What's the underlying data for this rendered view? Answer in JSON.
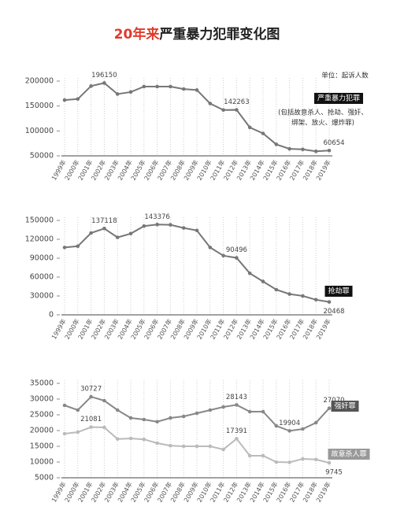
{
  "title": {
    "highlight": "20年来",
    "rest": "严重暴力犯罪变化图"
  },
  "chart_data": [
    {
      "type": "line",
      "unit": "单位：起诉人数",
      "annotations": [
        "(包括故意杀人、抢劫、强奸、",
        "绑架、放火、爆炸罪)"
      ],
      "categories": [
        "1999年",
        "2000年",
        "2001年",
        "2002年",
        "2003年",
        "2004年",
        "2005年",
        "2006年",
        "2007年",
        "2008年",
        "2009年",
        "2010年",
        "2011年",
        "2012年",
        "2013年",
        "2014年",
        "2015年",
        "2016年",
        "2017年",
        "2018年",
        "2019年"
      ],
      "series": [
        {
          "name": "严重暴力犯罪",
          "color": "#777777",
          "label_bg": "#111111",
          "values": [
            162000,
            164000,
            190000,
            196150,
            174000,
            178000,
            189000,
            189000,
            189000,
            184000,
            182000,
            155000,
            142000,
            142263,
            107000,
            95000,
            73000,
            64000,
            63000,
            59000,
            60654
          ],
          "value_labels": [
            null,
            null,
            null,
            "196150",
            null,
            null,
            null,
            null,
            null,
            null,
            null,
            null,
            null,
            "142263",
            null,
            null,
            null,
            null,
            null,
            null,
            "60654"
          ]
        }
      ],
      "ylim": [
        50000,
        200000
      ],
      "yticks": [
        50000,
        100000,
        150000,
        200000
      ],
      "grid": true
    },
    {
      "type": "line",
      "categories": [
        "1999年",
        "2000年",
        "2001年",
        "2002年",
        "2003年",
        "2004年",
        "2005年",
        "2006年",
        "2007年",
        "2008年",
        "2009年",
        "2010年",
        "2011年",
        "2012年",
        "2013年",
        "2014年",
        "2015年",
        "2016年",
        "2017年",
        "2018年",
        "2019年"
      ],
      "series": [
        {
          "name": "抢劫罪",
          "color": "#777777",
          "label_bg": "#111111",
          "values": [
            107000,
            109000,
            130000,
            137118,
            123000,
            129000,
            141000,
            143376,
            143000,
            138000,
            134000,
            107000,
            94000,
            90496,
            66000,
            53000,
            40000,
            33000,
            30000,
            24000,
            20468
          ],
          "value_labels": [
            null,
            null,
            null,
            "137118",
            null,
            null,
            null,
            "143376",
            null,
            null,
            null,
            null,
            null,
            "90496",
            null,
            null,
            null,
            null,
            null,
            null,
            "20468"
          ]
        }
      ],
      "ylim": [
        0,
        150000
      ],
      "yticks": [
        0,
        30000,
        60000,
        90000,
        120000,
        150000
      ],
      "grid": true
    },
    {
      "type": "line",
      "categories": [
        "1999年",
        "2000年",
        "2001年",
        "2002年",
        "2003年",
        "2004年",
        "2005年",
        "2006年",
        "2007年",
        "2008年",
        "2009年",
        "2010年",
        "2011年",
        "2012年",
        "2013年",
        "2014年",
        "2015年",
        "2016年",
        "2017年",
        "2018年",
        "2019年"
      ],
      "series": [
        {
          "name": "强奸罪",
          "color": "#888888",
          "label_bg": "#555555",
          "values": [
            28000,
            26500,
            30727,
            29500,
            26500,
            24000,
            23500,
            22800,
            24000,
            24500,
            25500,
            26500,
            27500,
            28143,
            26000,
            26000,
            21500,
            19904,
            20500,
            22500,
            27070
          ],
          "value_labels": [
            null,
            null,
            "30727",
            null,
            null,
            null,
            null,
            null,
            null,
            null,
            null,
            null,
            null,
            "28143",
            null,
            null,
            null,
            "19904",
            null,
            null,
            "27070"
          ]
        },
        {
          "name": "故意杀人罪",
          "color": "#bbbbbb",
          "label_bg": "#999999",
          "values": [
            19000,
            19500,
            21081,
            21000,
            17300,
            17500,
            17200,
            16000,
            15200,
            15000,
            15000,
            15000,
            14000,
            17391,
            12000,
            12000,
            10000,
            9900,
            11000,
            10800,
            9745
          ],
          "value_labels": [
            null,
            null,
            "21081",
            null,
            null,
            null,
            null,
            null,
            null,
            null,
            null,
            null,
            null,
            "17391",
            null,
            null,
            null,
            null,
            null,
            null,
            "9745"
          ]
        }
      ],
      "ylim": [
        5000,
        35000
      ],
      "yticks": [
        5000,
        10000,
        15000,
        20000,
        25000,
        30000,
        35000
      ],
      "grid": true
    }
  ]
}
